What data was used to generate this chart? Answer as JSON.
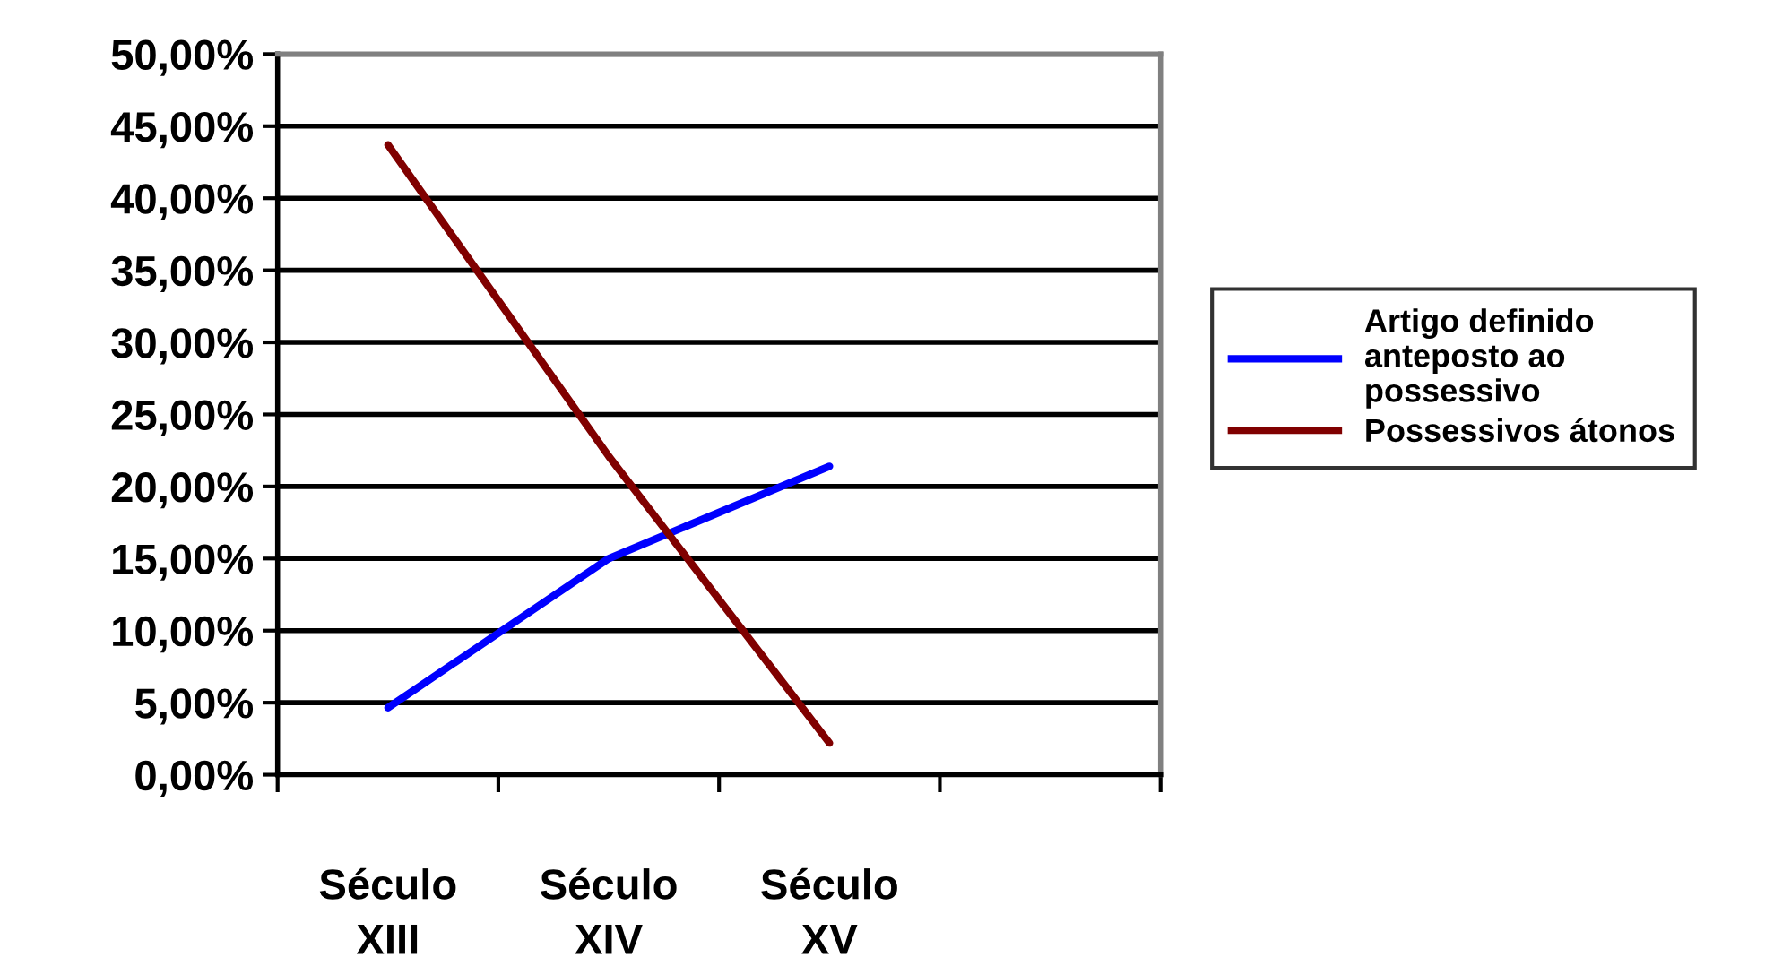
{
  "chart_data": {
    "type": "line",
    "categories": [
      "Século XIII",
      "Século XIV",
      "Século XV",
      null
    ],
    "series": [
      {
        "name": "Artigo definido anteposto ao possessivo",
        "color": "#0000ff",
        "values": [
          4.65,
          15.0,
          21.4,
          null
        ]
      },
      {
        "name": "Possessivos átonos",
        "color": "#800000",
        "values": [
          43.7,
          22.1,
          2.2,
          null
        ]
      }
    ],
    "ylim": [
      0,
      50
    ],
    "yticks": [
      {
        "value": 0,
        "label": "0,00%"
      },
      {
        "value": 5,
        "label": "5,00%"
      },
      {
        "value": 10,
        "label": "10,00%"
      },
      {
        "value": 15,
        "label": "15,00%"
      },
      {
        "value": 20,
        "label": "20,00%"
      },
      {
        "value": 25,
        "label": "25,00%"
      },
      {
        "value": 30,
        "label": "30,00%"
      },
      {
        "value": 35,
        "label": "35,00%"
      },
      {
        "value": 40,
        "label": "40,00%"
      },
      {
        "value": 45,
        "label": "45,00%"
      },
      {
        "value": 50,
        "label": "50,00%"
      }
    ],
    "grid": "y",
    "legend": "right",
    "marker": "none",
    "line_style": "solid"
  }
}
